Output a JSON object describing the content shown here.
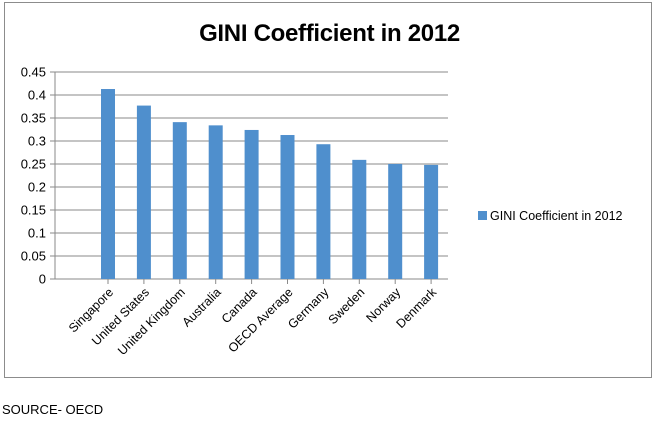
{
  "chart_data": {
    "type": "bar",
    "title": "GINI Coefficient in 2012",
    "xlabel": "",
    "ylabel": "",
    "categories": [
      "Singapore",
      "United States",
      "United Kingdom",
      "Australia",
      "Canada",
      "OECD Average",
      "Germany",
      "Sweden",
      "Norway",
      "Denmark"
    ],
    "series": [
      {
        "name": "GINI Coefficient in 2012",
        "values": [
          0.413,
          0.377,
          0.341,
          0.334,
          0.324,
          0.313,
          0.293,
          0.259,
          0.25,
          0.248
        ]
      }
    ],
    "ylim": [
      0,
      0.45
    ],
    "yticks": [
      "0",
      "0.05",
      "0.1",
      "0.15",
      "0.2",
      "0.25",
      "0.3",
      "0.35",
      "0.4",
      "0.45"
    ],
    "ytick_values": [
      0,
      0.05,
      0.1,
      0.15,
      0.2,
      0.25,
      0.3,
      0.35,
      0.4,
      0.45
    ],
    "grid": "horizontal",
    "legend_position": "right",
    "colors": {
      "bar": "#4f8fcd",
      "grid": "#8a8a8a",
      "axis": "#8a8a8a",
      "frame": "#8c8c8c"
    }
  },
  "footer": {
    "source": "SOURCE- OECD"
  }
}
